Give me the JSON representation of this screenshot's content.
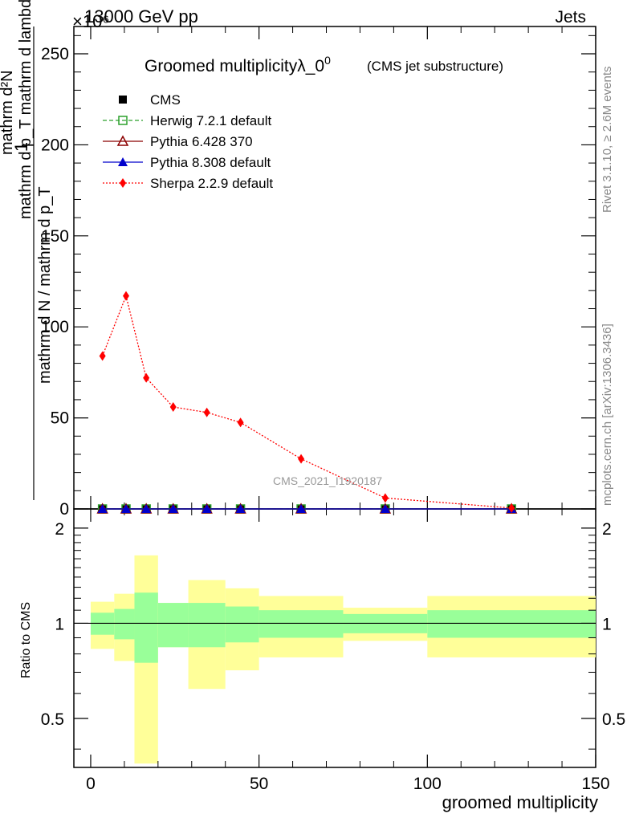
{
  "header": {
    "left": "13000 GeV pp",
    "right": "Jets",
    "exponent": "×10⁶"
  },
  "side_labels": {
    "rivet": "Rivet 3.1.10, ≥ 2.6M events",
    "mcplots": "mcplots.cern.ch [arXiv:1306.3436]"
  },
  "watermark": "CMS_2021_I1920187",
  "chart_data": [
    {
      "type": "line",
      "title": "Groomed multiplicityλ_0",
      "title_sup": "0",
      "subtitle": "(CMS jet substructure)",
      "ylabel_num": "mathrm d²N",
      "ylabel_den": "mathrm d p_T mathrm d lambda",
      "ylabel_front": "1",
      "ylabel_front_den": "mathrm d N / mathrm d p_T",
      "xlim": [
        -5,
        150
      ],
      "ylim": [
        0,
        265
      ],
      "yticks": [
        0,
        50,
        100,
        150,
        200,
        250
      ],
      "series": [
        {
          "name": "CMS",
          "color": "#000000",
          "marker": "square",
          "x": [
            3.5,
            10.5,
            16.5,
            24.5,
            34.5,
            44.5,
            62.5,
            87.5,
            125
          ],
          "y": [
            0,
            0,
            0,
            0,
            0,
            0,
            0,
            0,
            0
          ]
        },
        {
          "name": "Herwig 7.2.1 default",
          "color": "#2ca02c",
          "marker": "open-square",
          "dash": "5,3",
          "x": [
            3.5,
            10.5,
            16.5,
            24.5,
            34.5,
            44.5,
            62.5,
            87.5,
            125
          ],
          "y": [
            0,
            0,
            0,
            0,
            0,
            0,
            0,
            0,
            0
          ]
        },
        {
          "name": "Pythia 6.428 370",
          "color": "#8b0000",
          "marker": "open-triangle",
          "x": [
            3.5,
            10.5,
            16.5,
            24.5,
            34.5,
            44.5,
            62.5,
            87.5,
            125
          ],
          "y": [
            0,
            0,
            0,
            0,
            0,
            0,
            0,
            0,
            0
          ]
        },
        {
          "name": "Pythia 8.308 default",
          "color": "#0000cc",
          "marker": "triangle",
          "x": [
            3.5,
            10.5,
            16.5,
            24.5,
            34.5,
            44.5,
            62.5,
            87.5,
            125
          ],
          "y": [
            0,
            0,
            0,
            0,
            0,
            0,
            0,
            0,
            0
          ]
        },
        {
          "name": "Sherpa 2.2.9 default",
          "color": "#ff0000",
          "marker": "diamond",
          "dash": "2,2",
          "x": [
            3.5,
            10.5,
            16.5,
            24.5,
            34.5,
            44.5,
            62.5,
            87.5,
            125
          ],
          "y": [
            84,
            117,
            72,
            56,
            53,
            47.5,
            27.5,
            6,
            0.5
          ]
        }
      ]
    },
    {
      "type": "area",
      "xlabel": "groomed multiplicity",
      "ylabel": "Ratio to CMS",
      "xlim": [
        -5,
        150
      ],
      "ylim": [
        0.35,
        2.3
      ],
      "xticks": [
        0,
        50,
        100,
        150
      ],
      "yticks": [
        0.5,
        1,
        2
      ],
      "reference": 1,
      "bins": [
        {
          "lo": 0,
          "hi": 7,
          "inner": [
            0.92,
            1.08
          ],
          "outer": [
            0.83,
            1.17
          ]
        },
        {
          "lo": 7,
          "hi": 13,
          "inner": [
            0.89,
            1.11
          ],
          "outer": [
            0.76,
            1.24
          ]
        },
        {
          "lo": 13,
          "hi": 20,
          "inner": [
            0.75,
            1.25
          ],
          "outer": [
            0.36,
            1.64
          ]
        },
        {
          "lo": 20,
          "hi": 29,
          "inner": [
            0.84,
            1.16
          ],
          "outer": [
            0.84,
            1.16
          ]
        },
        {
          "lo": 29,
          "hi": 40,
          "inner": [
            0.84,
            1.16
          ],
          "outer": [
            0.62,
            1.37
          ]
        },
        {
          "lo": 40,
          "hi": 50,
          "inner": [
            0.87,
            1.13
          ],
          "outer": [
            0.71,
            1.29
          ]
        },
        {
          "lo": 50,
          "hi": 75,
          "inner": [
            0.9,
            1.1
          ],
          "outer": [
            0.78,
            1.22
          ]
        },
        {
          "lo": 75,
          "hi": 100,
          "inner": [
            0.93,
            1.07
          ],
          "outer": [
            0.88,
            1.12
          ]
        },
        {
          "lo": 100,
          "hi": 150,
          "inner": [
            0.9,
            1.1
          ],
          "outer": [
            0.78,
            1.22
          ]
        }
      ],
      "band_colors": {
        "inner": "#99ff99",
        "outer": "#ffff99"
      }
    }
  ]
}
